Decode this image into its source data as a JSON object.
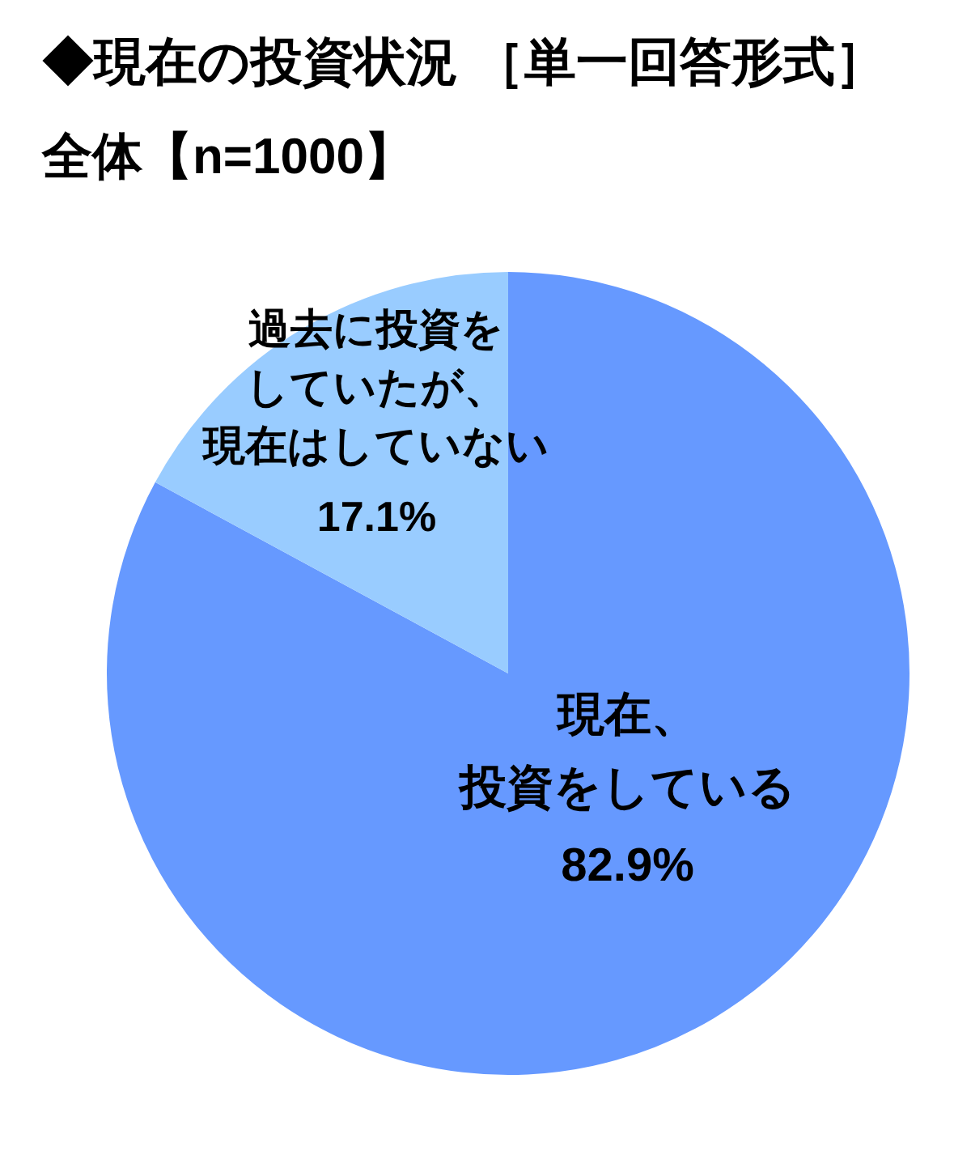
{
  "chart_data": {
    "type": "pie",
    "title": "◆現在の投資状況 ［単一回答形式］",
    "subtitle": "全体【n=1000】",
    "categories": [
      "現在、投資をしている",
      "過去に投資をしていたが、現在はしていない"
    ],
    "values": [
      82.9,
      17.1
    ],
    "colors": [
      "#6699ff",
      "#99ccff"
    ],
    "value_labels": [
      "82.9%",
      "17.1%"
    ]
  }
}
